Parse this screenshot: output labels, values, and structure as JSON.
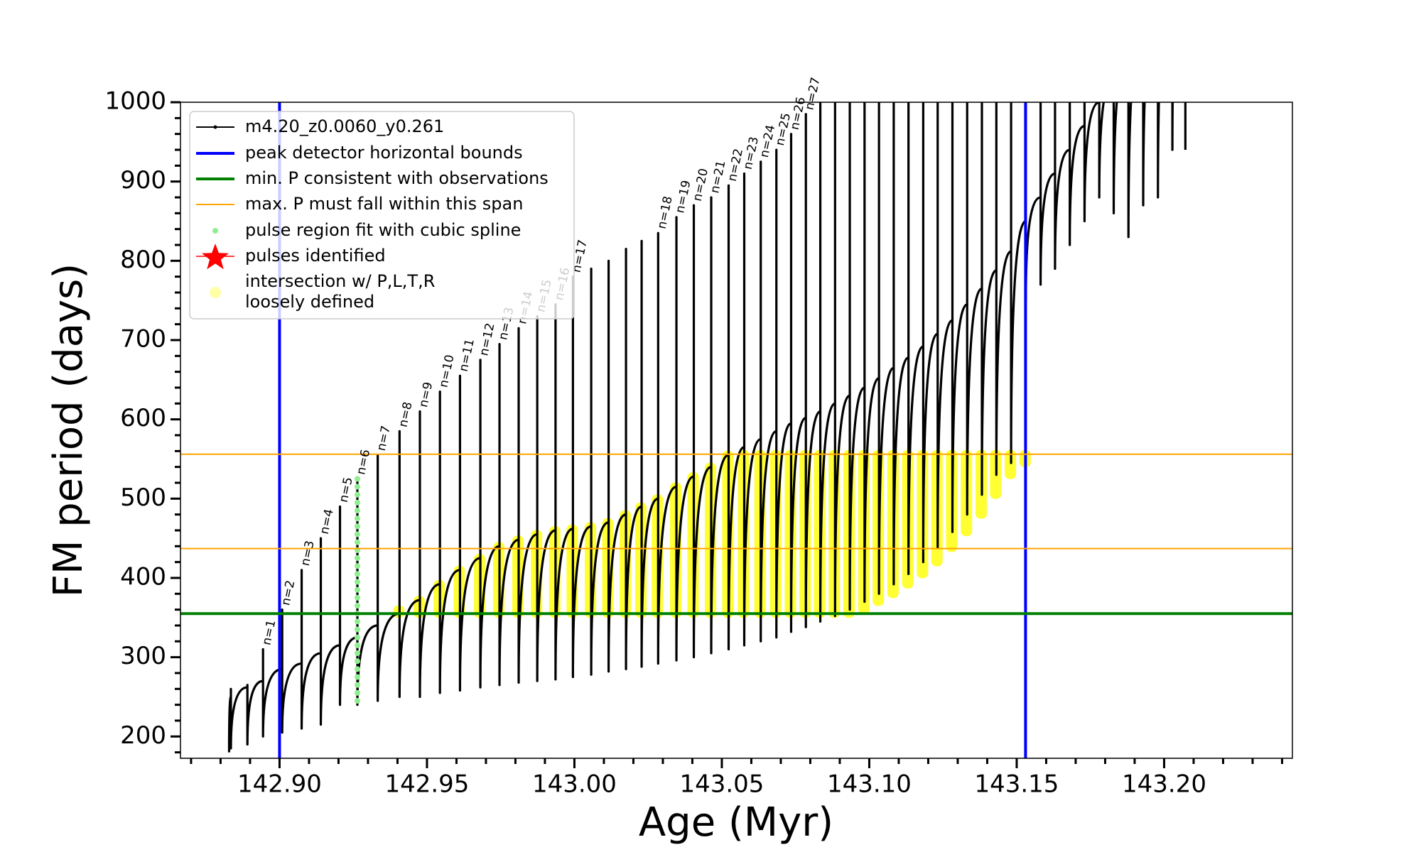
{
  "chart_data": {
    "type": "line",
    "xlabel": "Age (Myr)",
    "ylabel": "FM period (days)",
    "xlim": [
      142.8664,
      143.2435
    ],
    "ylim": [
      172.5,
      1000
    ],
    "xticks": [
      {
        "value": 142.9,
        "label": "142.90"
      },
      {
        "value": 142.95,
        "label": "142.95"
      },
      {
        "value": 143.0,
        "label": "143.00"
      },
      {
        "value": 143.05,
        "label": "143.05"
      },
      {
        "value": 143.1,
        "label": "143.10"
      },
      {
        "value": 143.15,
        "label": "143.15"
      },
      {
        "value": 143.2,
        "label": "143.20"
      }
    ],
    "yticks": [
      200,
      300,
      400,
      500,
      600,
      700,
      800,
      900,
      1000
    ],
    "xticks_minor": [
      142.87,
      142.88,
      142.89,
      142.91,
      142.92,
      142.93,
      142.94,
      142.96,
      142.97,
      142.98,
      142.99,
      143.01,
      143.02,
      143.03,
      143.04,
      143.06,
      143.07,
      143.08,
      143.09,
      143.11,
      143.12,
      143.13,
      143.14,
      143.16,
      143.17,
      143.18,
      143.19,
      143.21,
      143.22,
      143.23,
      143.24
    ],
    "yticks_minor": [
      180,
      220,
      240,
      260,
      280,
      320,
      340,
      360,
      380,
      420,
      440,
      460,
      480,
      520,
      540,
      560,
      580,
      620,
      640,
      660,
      680,
      720,
      740,
      760,
      780,
      820,
      840,
      860,
      880,
      920,
      940,
      960,
      980
    ],
    "series": [
      {
        "name": "m4.20_z0.0060_y0.261",
        "color": "#000000",
        "x": [
          142.8829,
          142.8835,
          142.8835,
          142.8835,
          142.8891,
          142.8891,
          142.8891,
          142.8944,
          142.8944,
          142.8944,
          142.9009,
          142.9009,
          142.9009,
          142.9075,
          142.9075,
          142.9075,
          142.914,
          142.914,
          142.914,
          142.9205,
          142.9205,
          142.9205,
          142.9264,
          142.9264,
          142.9264,
          142.9333,
          142.9333,
          142.9333,
          142.9407,
          142.9407,
          142.9407,
          142.9476,
          142.9476,
          142.9476,
          142.9544,
          142.9544,
          142.9544,
          142.9612,
          142.9612,
          142.9612,
          142.9681,
          142.9681,
          142.9681,
          142.9746,
          142.9746,
          142.9746,
          142.9811,
          142.9811,
          142.9811,
          142.9874,
          142.9874,
          142.9874,
          142.9936,
          142.9936,
          142.9936,
          142.9995,
          142.9995,
          142.9995,
          143.0057,
          143.0057,
          143.0057,
          143.0116,
          143.0116,
          143.0116,
          143.0175,
          143.0175,
          143.0175,
          143.0228,
          143.0228,
          143.0228,
          143.0284,
          143.0284,
          143.0284,
          143.0346,
          143.0346,
          143.0346,
          143.0405,
          143.0405,
          143.0405,
          143.0464,
          143.0464,
          143.0464,
          143.0523,
          143.0523,
          143.0523,
          143.0576,
          143.0576,
          143.0576,
          143.0632,
          143.0632,
          143.0632,
          143.0685,
          143.0685,
          143.0685,
          143.0735,
          143.0735,
          143.0735,
          143.0785,
          143.0785,
          143.0785,
          143.0834,
          143.0834,
          143.0834,
          143.0884,
          143.0884,
          143.0884,
          143.0934,
          143.0934,
          143.0934,
          143.0984,
          143.0984,
          143.0984,
          143.1033,
          143.1033,
          143.1033,
          143.1083,
          143.1083,
          143.1083,
          143.1133,
          143.1133,
          143.1133,
          143.1183,
          143.1183,
          143.1183,
          143.1232,
          143.1232,
          143.1232,
          143.1282,
          143.1282,
          143.1282,
          143.1332,
          143.1332,
          143.1332,
          143.1382,
          143.1382,
          143.1382,
          143.1431,
          143.1431,
          143.1431,
          143.1481,
          143.1481,
          143.1481,
          143.1531,
          143.1531,
          143.1531,
          143.1581,
          143.1581,
          143.1581,
          143.163,
          143.163,
          143.163,
          143.168,
          143.168,
          143.168,
          143.173,
          143.173,
          143.173,
          143.178,
          143.178,
          143.178,
          143.1829,
          143.1829,
          143.1829,
          143.1879,
          143.1879,
          143.1879,
          143.1929,
          143.1929,
          143.1929,
          143.1979,
          143.1979,
          143.1979,
          143.2028,
          143.2028,
          143.2028,
          143.2072,
          143.2072,
          143.2072
        ],
        "values": [
          180,
          250,
          260,
          185,
          262,
          265,
          190,
          270,
          310,
          200,
          285,
          360,
          205,
          292,
          410,
          210,
          305,
          450,
          215,
          315,
          490,
          240,
          325,
          525,
          240,
          340,
          555,
          245,
          355,
          585,
          250,
          372,
          610,
          250,
          392,
          635,
          255,
          410,
          655,
          258,
          425,
          675,
          262,
          440,
          695,
          265,
          448,
          715,
          268,
          455,
          730,
          270,
          460,
          745,
          272,
          462,
          780,
          275,
          465,
          790,
          278,
          470,
          800,
          282,
          480,
          815,
          285,
          490,
          825,
          288,
          500,
          835,
          292,
          515,
          855,
          296,
          528,
          870,
          300,
          540,
          880,
          305,
          555,
          895,
          310,
          565,
          910,
          315,
          575,
          925,
          320,
          585,
          940,
          325,
          595,
          960,
          332,
          602,
          985,
          338,
          610,
          1050,
          345,
          620,
          1050,
          352,
          630,
          1050,
          360,
          640,
          1050,
          370,
          652,
          1050,
          380,
          665,
          1050,
          392,
          678,
          1050,
          405,
          692,
          1050,
          420,
          708,
          1050,
          438,
          725,
          1050,
          458,
          745,
          1050,
          480,
          765,
          1050,
          505,
          788,
          1050,
          530,
          812,
          1050,
          545,
          850,
          1050,
          750,
          880,
          1050,
          770,
          910,
          1050,
          790,
          940,
          1050,
          820,
          970,
          1050,
          850,
          1000,
          1200,
          880,
          1030,
          1200,
          860,
          1060,
          1200,
          830,
          1090,
          1200,
          870,
          1120,
          1200,
          880,
          1150,
          1200,
          940,
          1180,
          1200,
          940
        ]
      }
    ],
    "reference_lines": [
      {
        "name": "peak detector horizontal bounds",
        "color": "#0000ff",
        "orientation": "vertical",
        "values": [
          142.9,
          143.153
        ]
      },
      {
        "name": "min. P consistent with observations",
        "color": "#008000",
        "orientation": "horizontal",
        "values": [
          355
        ]
      },
      {
        "name": "max. P must fall within this span",
        "color": "#ffa500",
        "orientation": "horizontal",
        "values": [
          437,
          556
        ]
      }
    ],
    "spline": {
      "name": "pulse region fit with cubic spline",
      "color": "#90ee90",
      "x": 142.9264,
      "values": [
        245,
        255,
        265,
        275,
        285,
        295,
        305,
        315,
        325,
        335,
        345,
        355,
        365,
        375,
        385,
        395,
        405,
        415,
        425,
        435,
        445,
        455,
        465,
        475,
        485,
        495,
        505,
        515,
        525
      ]
    },
    "pulses_identified": {
      "name": "pulses identified",
      "color": "#ff0000"
    },
    "intersections": {
      "name": [
        "intersection w/ P,L,T,R",
        "loosely defined"
      ],
      "color": "#ffff00",
      "x": [
        142.9407,
        142.9476,
        142.9544,
        142.9612,
        142.9681,
        142.9746,
        142.9811,
        142.9874,
        142.9936,
        142.9995,
        143.0057,
        143.0116,
        143.0175,
        143.0228,
        143.0284,
        143.0346,
        143.0405,
        143.0464,
        143.0523,
        143.0576,
        143.0632,
        143.0685,
        143.0735,
        143.0785,
        143.0834,
        143.0884,
        143.0934,
        143.0984,
        143.1033,
        143.1083,
        143.1133,
        143.1183,
        143.1232,
        143.1282,
        143.1332,
        143.1382,
        143.1431,
        143.1481,
        143.1531
      ],
      "low": [
        355,
        355,
        355,
        355,
        355,
        355,
        355,
        355,
        355,
        355,
        355,
        355,
        355,
        355,
        355,
        355,
        355,
        355,
        355,
        355,
        355,
        355,
        355,
        355,
        355,
        355,
        355,
        360,
        370,
        380,
        392,
        405,
        420,
        438,
        458,
        480,
        505,
        530,
        545
      ],
      "high": [
        360,
        372,
        392,
        410,
        425,
        440,
        448,
        455,
        460,
        462,
        465,
        470,
        480,
        490,
        500,
        515,
        528,
        540,
        555,
        556,
        556,
        556,
        556,
        556,
        556,
        556,
        556,
        556,
        556,
        556,
        556,
        556,
        556,
        556,
        556,
        556,
        556,
        556,
        556
      ]
    },
    "pulse_labels": {
      "x": [
        142.8944,
        142.9009,
        142.9075,
        142.914,
        142.9205,
        142.9264,
        142.9333,
        142.9407,
        142.9476,
        142.9544,
        142.9612,
        142.9681,
        142.9746,
        142.9811,
        142.9874,
        142.9936,
        142.9995,
        143.0284,
        143.0346,
        143.0405,
        143.0464,
        143.0523,
        143.0576,
        143.0632,
        143.0685,
        143.0735,
        143.0785
      ],
      "labels": [
        "n=1",
        "n=2",
        "n=3",
        "n=4",
        "n=5",
        "n=6",
        "n=7",
        "n=8",
        "n=9",
        "n=10",
        "n=11",
        "n=12",
        "n=13",
        "n=14",
        "n=15",
        "n=16",
        "n=17",
        "n=18",
        "n=19",
        "n=20",
        "n=21",
        "n=22",
        "n=23",
        "n=24",
        "n=25",
        "n=26",
        "n=27"
      ]
    }
  }
}
